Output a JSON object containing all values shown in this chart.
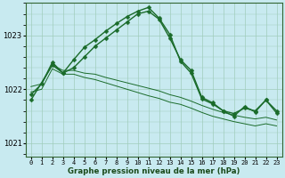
{
  "title": "Graphe pression niveau de la mer (hPa)",
  "background_color": "#c8eaf0",
  "grid_color": "#a0ccbb",
  "line_color": "#1a6b2a",
  "xlim": [
    -0.5,
    23.5
  ],
  "ylim": [
    1020.75,
    1023.6
  ],
  "yticks": [
    1021,
    1022,
    1023
  ],
  "xticks": [
    0,
    1,
    2,
    3,
    4,
    5,
    6,
    7,
    8,
    9,
    10,
    11,
    12,
    13,
    14,
    15,
    16,
    17,
    18,
    19,
    20,
    21,
    22,
    23
  ],
  "series": [
    {
      "x": [
        0,
        1,
        2,
        3,
        4,
        5,
        6,
        7,
        8,
        9,
        10,
        11,
        12,
        13,
        14,
        15,
        16,
        17,
        18,
        19,
        20,
        21,
        22,
        23
      ],
      "y": [
        1021.9,
        1022.1,
        1022.5,
        1022.3,
        1022.4,
        1022.6,
        1022.8,
        1022.95,
        1023.1,
        1023.25,
        1023.4,
        1023.45,
        1023.3,
        1022.95,
        1022.55,
        1022.35,
        1021.85,
        1021.75,
        1021.6,
        1021.55,
        1021.65,
        1021.6,
        1021.8,
        1021.6
      ],
      "marker": "D",
      "markersize": 2.5,
      "linewidth": 1.0,
      "has_marker": true
    },
    {
      "x": [
        0,
        1,
        2,
        3,
        4,
        5,
        6,
        7,
        8,
        9,
        10,
        11,
        12,
        13,
        14,
        15,
        16,
        17,
        18,
        19,
        20,
        21,
        22,
        23
      ],
      "y": [
        1022.05,
        1022.1,
        1022.45,
        1022.35,
        1022.35,
        1022.3,
        1022.28,
        1022.22,
        1022.17,
        1022.12,
        1022.07,
        1022.02,
        1021.97,
        1021.9,
        1021.85,
        1021.78,
        1021.7,
        1021.63,
        1021.57,
        1021.52,
        1021.48,
        1021.45,
        1021.48,
        1021.43
      ],
      "marker": null,
      "markersize": 0,
      "linewidth": 0.7,
      "has_marker": false
    },
    {
      "x": [
        0,
        1,
        2,
        3,
        4,
        5,
        6,
        7,
        8,
        9,
        10,
        11,
        12,
        13,
        14,
        15,
        16,
        17,
        18,
        19,
        20,
        21,
        22,
        23
      ],
      "y": [
        1021.95,
        1022.0,
        1022.38,
        1022.28,
        1022.28,
        1022.22,
        1022.18,
        1022.12,
        1022.06,
        1022.0,
        1021.94,
        1021.88,
        1021.83,
        1021.76,
        1021.72,
        1021.65,
        1021.57,
        1021.5,
        1021.45,
        1021.4,
        1021.36,
        1021.32,
        1021.36,
        1021.32
      ],
      "marker": null,
      "markersize": 0,
      "linewidth": 0.7,
      "has_marker": false
    },
    {
      "x": [
        0,
        2,
        3,
        4,
        5,
        6,
        7,
        8,
        9,
        10,
        11,
        12,
        13,
        14,
        15,
        16,
        17,
        18,
        19,
        20,
        21,
        22,
        23
      ],
      "y": [
        1021.8,
        1022.45,
        1022.3,
        1022.55,
        1022.78,
        1022.92,
        1023.08,
        1023.22,
        1023.35,
        1023.45,
        1023.52,
        1023.32,
        1023.02,
        1022.52,
        1022.3,
        1021.82,
        1021.73,
        1021.6,
        1021.5,
        1021.68,
        1021.58,
        1021.8,
        1021.56
      ],
      "marker": "D",
      "markersize": 2.5,
      "linewidth": 1.0,
      "has_marker": true
    }
  ]
}
